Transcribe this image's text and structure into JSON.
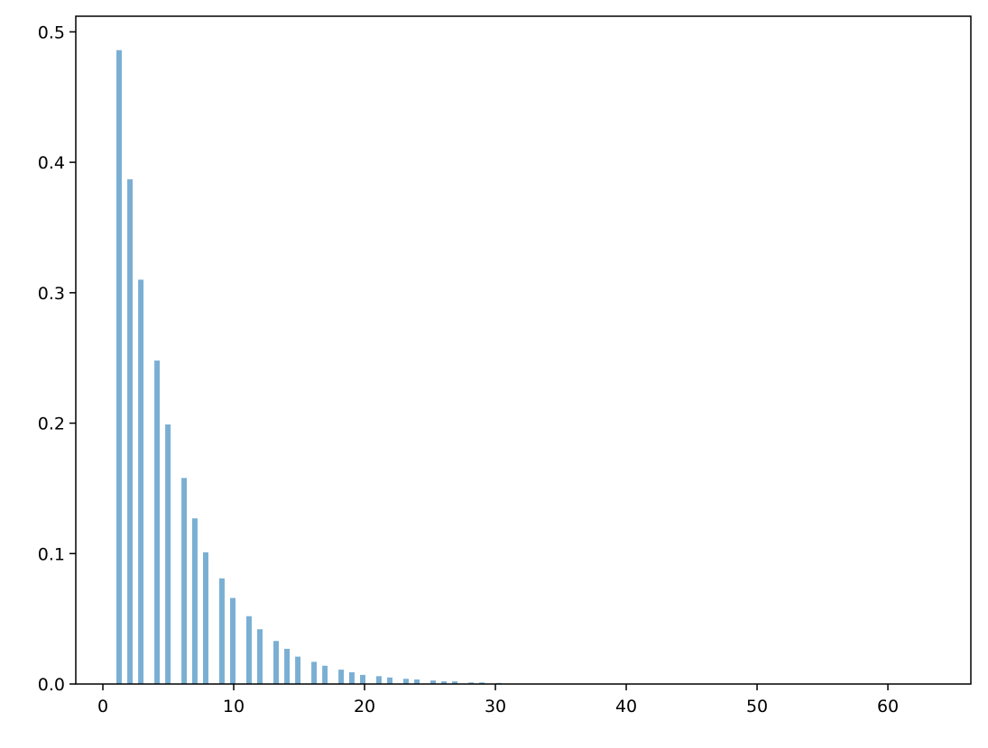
{
  "chart_data": {
    "type": "bar",
    "title": "",
    "xlabel": "",
    "ylabel": "",
    "xlim": [
      -2.07,
      66.34
    ],
    "ylim": [
      0,
      0.512
    ],
    "grid": false,
    "bar_color": "#7aafd4",
    "bar_width": 0.41,
    "x": [
      1.24,
      2.07,
      2.9,
      4.14,
      4.97,
      6.21,
      7.03,
      7.86,
      9.1,
      9.93,
      11.17,
      12.0,
      13.24,
      14.07,
      14.9,
      16.14,
      16.97,
      18.21,
      19.03,
      19.86,
      21.1,
      21.93,
      23.17,
      24.0,
      25.24,
      26.07,
      26.9,
      28.14,
      28.97,
      30.28
    ],
    "values": [
      0.486,
      0.387,
      0.31,
      0.248,
      0.199,
      0.158,
      0.127,
      0.101,
      0.081,
      0.066,
      0.052,
      0.042,
      0.033,
      0.027,
      0.021,
      0.017,
      0.014,
      0.011,
      0.009,
      0.007,
      0.006,
      0.005,
      0.004,
      0.0035,
      0.0027,
      0.002,
      0.002,
      0.0012,
      0.0012,
      0.0008
    ],
    "xticks": [
      0,
      10,
      20,
      30,
      40,
      50,
      60
    ],
    "xtick_labels": [
      "0",
      "10",
      "20",
      "30",
      "40",
      "50",
      "60"
    ],
    "yticks": [
      0,
      0.1,
      0.2,
      0.3,
      0.4,
      0.5
    ],
    "ytick_labels": [
      "0.0",
      "0.1",
      "0.2",
      "0.3",
      "0.4",
      "0.5"
    ]
  }
}
